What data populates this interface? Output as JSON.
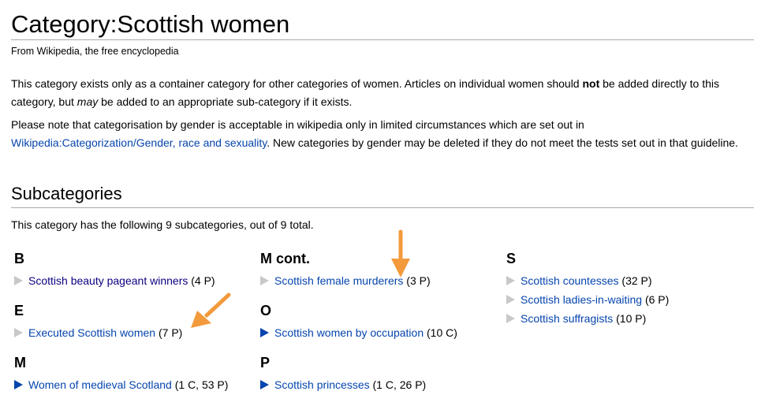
{
  "page": {
    "title": "Category:Scottish women",
    "tagline": "From Wikipedia, the free encyclopedia"
  },
  "intro": {
    "p1_a": "This category exists only as a container category for other categories of women. Articles on individual women should ",
    "p1_bold": "not",
    "p1_b": " be added directly to this category, but ",
    "p1_em": "may",
    "p1_c": " be added to an appropriate sub-category if it exists.",
    "p2_a": "Please note that categorisation by gender is acceptable in wikipedia only in limited circumstances which are set out in ",
    "p2_link": "Wikipedia:Categorization/Gender, race and sexuality",
    "p2_b": ". New categories by gender may be deleted if they do not meet the tests set out in that guideline."
  },
  "subcategories": {
    "heading": "Subcategories",
    "count_line": "This category has the following 9 subcategories, out of 9 total.",
    "columns": [
      {
        "groups": [
          {
            "letter": "B",
            "items": [
              {
                "label": "Scottish beauty pageant winners",
                "counts": "(4 P)",
                "expandable": false
              }
            ]
          },
          {
            "letter": "E",
            "items": [
              {
                "label": "Executed Scottish women",
                "counts": "(7 P)",
                "expandable": false
              }
            ]
          },
          {
            "letter": "M",
            "items": [
              {
                "label": "Women of medieval Scotland",
                "counts": "(1 C, 53 P)",
                "expandable": true
              }
            ]
          }
        ]
      },
      {
        "groups": [
          {
            "letter": "M cont.",
            "items": [
              {
                "label": "Scottish female murderers",
                "counts": "(3 P)",
                "expandable": false
              }
            ]
          },
          {
            "letter": "O",
            "items": [
              {
                "label": "Scottish women by occupation",
                "counts": "(10 C)",
                "expandable": true
              }
            ]
          },
          {
            "letter": "P",
            "items": [
              {
                "label": "Scottish princesses",
                "counts": "(1 C, 26 P)",
                "expandable": true
              }
            ]
          }
        ]
      },
      {
        "groups": [
          {
            "letter": "S",
            "items": [
              {
                "label": "Scottish countesses",
                "counts": "(32 P)",
                "expandable": false
              },
              {
                "label": "Scottish ladies-in-waiting",
                "counts": "(6 P)",
                "expandable": false
              },
              {
                "label": "Scottish suffragists",
                "counts": "(10 P)",
                "expandable": false
              }
            ]
          }
        ]
      }
    ]
  },
  "colors": {
    "link": "#0645ad",
    "visited_link": "#0b0080",
    "annotation_arrow": "#f39a3c",
    "collapsed_triangle": "#c8c8c8"
  }
}
